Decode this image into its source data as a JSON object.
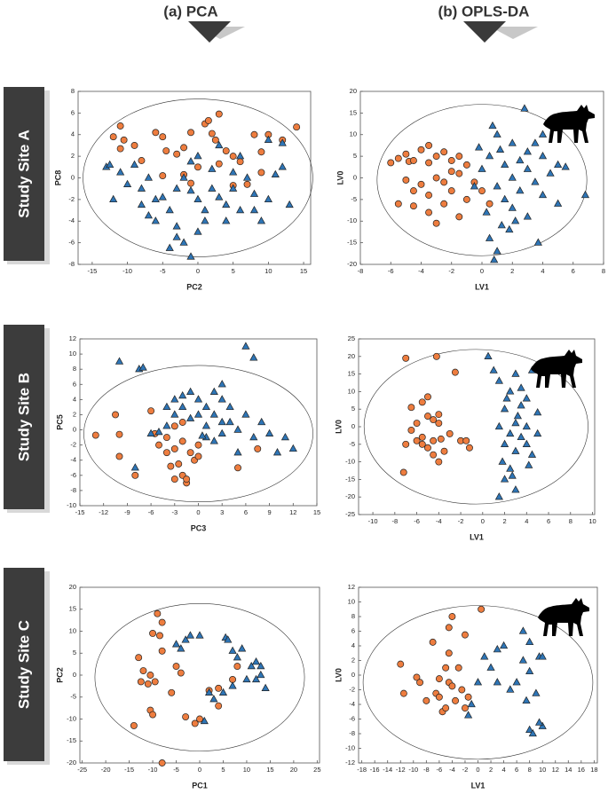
{
  "column_labels": [
    "(a)  PCA",
    "(b)  OPLS-DA"
  ],
  "row_labels": [
    "Study  Site  A",
    "Study  Site  B",
    "Study  Site  C"
  ],
  "chart_data": [
    {
      "type": "scatter",
      "xlabel": "PC2",
      "ylabel": "PC8",
      "xlim": [
        -17,
        16
      ],
      "ylim": [
        -8,
        8
      ],
      "xticks": [
        -15,
        -10,
        -5,
        0,
        5,
        10,
        15
      ],
      "yticks": [
        -8,
        -6,
        -4,
        -2,
        0,
        2,
        4,
        6,
        8
      ],
      "ellipse": {
        "center": [
          0,
          0
        ],
        "radii": [
          16.3,
          7.3
        ]
      },
      "series": [
        {
          "color": "#ee7d3f",
          "marker": "circle",
          "x": [
            -11,
            -12,
            -10.5,
            -9,
            -11,
            -6,
            -5,
            -4.5,
            -3,
            -2,
            -1,
            1,
            1.5,
            2,
            3,
            2.5,
            4,
            5,
            6,
            8,
            9,
            10,
            12,
            14,
            -2,
            -5,
            5,
            7,
            9,
            3,
            -8,
            0,
            -1
          ],
          "values": [
            4.8,
            3.8,
            3.5,
            3,
            2.7,
            4.2,
            3.8,
            2.5,
            2.2,
            2.8,
            4.2,
            5,
            5.3,
            4.1,
            5.9,
            3.5,
            2.5,
            2,
            1.5,
            4,
            2.4,
            4,
            3.5,
            4.7,
            0.3,
            0.2,
            -0.7,
            -0.6,
            0.5,
            1.3,
            1.6,
            1,
            -0.5
          ]
        },
        {
          "color": "#2e75b6",
          "marker": "triangle",
          "x": [
            -13,
            -12.5,
            -11,
            -10,
            -9,
            -8,
            -7,
            -6,
            -7,
            -6,
            -8,
            -5,
            -4,
            -3,
            -3,
            -2,
            -1,
            -1,
            0,
            0,
            1,
            1,
            2,
            2,
            3,
            3,
            4,
            5,
            5,
            6,
            6,
            7,
            8,
            8,
            9,
            10,
            11,
            12,
            13,
            12,
            10,
            -2,
            -1,
            0,
            -12,
            4,
            -4,
            -3
          ],
          "values": [
            1,
            1.2,
            0.5,
            -0.6,
            1.2,
            -1,
            0,
            -2,
            -3.5,
            -4,
            -2.5,
            -1.8,
            -3,
            -4.5,
            -1,
            0,
            -1.2,
            1.5,
            2,
            -2,
            -3,
            -4,
            -1,
            0.8,
            -1.8,
            3,
            -2.5,
            -1,
            0.5,
            -3,
            2,
            0,
            -1.5,
            -3,
            -4,
            -2,
            0.3,
            1,
            -2.5,
            3.2,
            3.5,
            -6,
            -7.3,
            -5,
            -2,
            -4,
            -6.5,
            -5.5
          ]
        }
      ]
    },
    {
      "type": "scatter",
      "xlabel": "LV1",
      "ylabel": "LV0",
      "xlim": [
        -8,
        8
      ],
      "ylim": [
        -20,
        20
      ],
      "xticks": [
        -8,
        -6,
        -4,
        -2,
        0,
        2,
        4,
        6,
        8
      ],
      "yticks": [
        -20,
        -15,
        -10,
        -5,
        0,
        5,
        10,
        15,
        20
      ],
      "ellipse": {
        "center": [
          0,
          -0.5
        ],
        "radii": [
          6.9,
          17.5
        ]
      },
      "series": [
        {
          "color": "#ee7d3f",
          "marker": "circle",
          "x": [
            -6,
            -5.5,
            -5,
            -4.8,
            -4.5,
            -4,
            -3.5,
            -3,
            -3.5,
            -2.5,
            -2,
            -1.5,
            -1,
            -2,
            -3,
            -2.5,
            -4,
            -4.5,
            -5.5,
            -4.5,
            -3.5,
            -3,
            -2.5,
            -2,
            -1.5,
            -1,
            -0.5,
            0,
            -3.5,
            -5,
            -1.5,
            0.5
          ],
          "values": [
            3.5,
            4.5,
            5.5,
            3.8,
            4,
            6.5,
            7.5,
            5,
            3.5,
            6,
            4,
            5,
            3,
            1.5,
            0,
            -1,
            -1.5,
            -3,
            -6,
            -6.5,
            -8,
            -10.5,
            -6,
            -3,
            -9,
            -5,
            -1,
            -3,
            -4,
            -0.5,
            1,
            -6
          ]
        },
        {
          "color": "#2e75b6",
          "marker": "triangle",
          "x": [
            0,
            0.5,
            0.7,
            1,
            1,
            1.5,
            1.5,
            2,
            2,
            2,
            2.5,
            2.5,
            3,
            3,
            3,
            3.5,
            3.5,
            4,
            4,
            4,
            2.8,
            4.5,
            5,
            5,
            0.5,
            1,
            0.8,
            1.3,
            1.8,
            3.7,
            6.8,
            -0.5,
            -0.2,
            1.2,
            5.5,
            2.2,
            0.3
          ],
          "values": [
            2,
            5,
            12,
            10,
            -2,
            3,
            -5,
            8,
            0,
            -7,
            4,
            -3,
            6,
            2,
            -9,
            8,
            -1,
            5,
            10,
            -4,
            16,
            1,
            3,
            -6,
            -14,
            -17,
            -19,
            -11,
            -12,
            -15,
            -4,
            -2,
            7,
            6.5,
            2.5,
            -10,
            -8
          ]
        }
      ]
    },
    {
      "type": "scatter",
      "xlabel": "PC3",
      "ylabel": "PC5",
      "xlim": [
        -15,
        15
      ],
      "ylim": [
        -10,
        12
      ],
      "xticks": [
        -15,
        -12,
        -9,
        -6,
        -3,
        0,
        3,
        6,
        9,
        12,
        15
      ],
      "yticks": [
        -10,
        -8,
        -6,
        -4,
        -2,
        0,
        2,
        4,
        6,
        8,
        10,
        12
      ],
      "ellipse": {
        "center": [
          0,
          -0.5
        ],
        "radii": [
          14.5,
          9
        ]
      },
      "series": [
        {
          "color": "#ee7d3f",
          "marker": "circle",
          "x": [
            -13,
            -10.5,
            -10,
            -10,
            -8,
            -6,
            -5.5,
            -5,
            -4,
            -4,
            -3,
            -3,
            -2.5,
            -2,
            -2,
            -1.5,
            -1,
            -0.5,
            0,
            -3,
            -1.5,
            0,
            -3.5,
            5,
            7.5,
            -2
          ],
          "values": [
            -0.7,
            2,
            -0.6,
            -3.5,
            -6,
            2.5,
            -0.5,
            -2,
            -3,
            -1,
            0.5,
            -2.5,
            -4.5,
            -1.5,
            -6,
            -7,
            -3,
            -4,
            -2,
            -6.5,
            -6.5,
            -3.5,
            -4.8,
            -5,
            -2.5,
            1
          ]
        },
        {
          "color": "#2e75b6",
          "marker": "triangle",
          "x": [
            -10,
            -7.5,
            -7,
            -8,
            -6,
            -5,
            -4,
            -3,
            -3,
            -2,
            -2,
            -1,
            -1,
            0,
            0,
            1,
            1,
            1,
            2,
            2,
            2,
            3,
            3,
            3,
            3,
            4,
            4,
            5,
            5,
            6,
            6,
            7,
            7,
            8,
            9,
            10,
            11,
            12,
            -4,
            0.5
          ],
          "values": [
            9,
            8,
            8.2,
            -5,
            -0.5,
            -0.3,
            0.5,
            4,
            2,
            3,
            4.5,
            5,
            1.5,
            2,
            4,
            0.5,
            3,
            -1,
            5,
            2,
            -1.5,
            4,
            1,
            6,
            -0.5,
            3,
            1,
            0,
            -3,
            11,
            2,
            9.5,
            -1,
            1,
            -0.5,
            -3,
            -1,
            -2.5,
            3,
            -0.8
          ]
        }
      ]
    },
    {
      "type": "scatter",
      "xlabel": "LV1",
      "ylabel": "LV0",
      "xlim": [
        -11.3,
        10.2
      ],
      "ylim": [
        -25,
        25
      ],
      "xticks": [
        -10,
        -8,
        -6,
        -4,
        -2,
        0,
        2,
        4,
        6,
        8,
        10
      ],
      "yticks": [
        -25,
        -20,
        -15,
        -10,
        -5,
        0,
        5,
        10,
        15,
        20,
        25
      ],
      "ellipse": {
        "center": [
          -0.6,
          0
        ],
        "radii": [
          10.2,
          22
        ]
      },
      "series": [
        {
          "color": "#ee7d3f",
          "marker": "circle",
          "x": [
            -7,
            -4.2,
            -7.2,
            -7,
            -6.5,
            -6.5,
            -6,
            -6,
            -5.5,
            -5.5,
            -5,
            -5,
            -5,
            -4.5,
            -4.5,
            -4.5,
            -4,
            -4,
            -3.8,
            -3.5,
            -3,
            -2.5,
            -2,
            -1.5,
            -1.2,
            -4,
            -5.5
          ],
          "values": [
            19.5,
            20,
            -13,
            -5,
            5.5,
            -1,
            -4,
            1,
            7,
            -3,
            3,
            -6,
            8.5,
            -8,
            2,
            -4,
            1,
            -10,
            -3.5,
            -7,
            -2,
            15.5,
            -4,
            -4,
            -6,
            3.5,
            -5
          ]
        },
        {
          "color": "#2e75b6",
          "marker": "triangle",
          "x": [
            0.5,
            1,
            1.5,
            1.5,
            1.8,
            2,
            2,
            2,
            2.2,
            2.5,
            2.5,
            2.5,
            3,
            3,
            3,
            3,
            3.5,
            3.5,
            3.5,
            4,
            4,
            4,
            4.5,
            4.5,
            5,
            5,
            2.7,
            1.5,
            3.2,
            4.2
          ],
          "values": [
            20,
            16,
            13,
            0,
            -10,
            -15,
            5,
            -5,
            8,
            -2,
            10,
            -12,
            15,
            1,
            -7,
            -18,
            6,
            -3,
            11,
            0,
            -5,
            8,
            16,
            -8,
            -2,
            4,
            -14,
            -20,
            3,
            -11
          ]
        }
      ]
    },
    {
      "type": "scatter",
      "xlabel": "PC1",
      "ylabel": "PC2",
      "xlim": [
        -25.5,
        25.5
      ],
      "ylim": [
        -20,
        20
      ],
      "xticks": [
        -25,
        -20,
        -15,
        -10,
        -5,
        0,
        5,
        10,
        15,
        20,
        25
      ],
      "yticks": [
        -20,
        -15,
        -10,
        -5,
        0,
        5,
        10,
        15,
        20
      ],
      "ellipse": {
        "center": [
          0,
          -0.5
        ],
        "radii": [
          22.3,
          16.8
        ]
      },
      "series": [
        {
          "color": "#ee7d3f",
          "marker": "circle",
          "x": [
            -14,
            -13,
            -12.5,
            -12,
            -11,
            -10.5,
            -10,
            -10,
            -10.5,
            -9.5,
            -9,
            -8.5,
            -8,
            -8,
            -8,
            -6,
            -5,
            -4,
            -3,
            -1,
            0,
            2,
            4,
            4,
            7,
            8
          ],
          "values": [
            -11.5,
            4,
            -1.5,
            1,
            -2,
            -8,
            -9,
            9.5,
            0,
            -1.5,
            14,
            9,
            12,
            -20,
            5.5,
            -4,
            2,
            0.5,
            -9.5,
            -11,
            -10,
            -3.5,
            -3,
            -7,
            -1,
            2
          ]
        },
        {
          "color": "#2e75b6",
          "marker": "triangle",
          "x": [
            -5,
            -4,
            -3,
            -2,
            0,
            1,
            2,
            3,
            5,
            5.5,
            6,
            7,
            7,
            8,
            9,
            11,
            12,
            12,
            13,
            14,
            13,
            10
          ],
          "values": [
            7,
            6,
            8,
            9,
            9,
            -10.5,
            -4,
            -5.5,
            -4,
            8.5,
            8,
            5.5,
            -2.5,
            4,
            6,
            2,
            -1,
            3,
            0,
            -3,
            2,
            -1
          ]
        }
      ]
    },
    {
      "type": "scatter",
      "xlabel": "LV1",
      "ylabel": "LV0",
      "xlim": [
        -18.5,
        18.5
      ],
      "ylim": [
        -12,
        12
      ],
      "xticks": [
        -18,
        -16,
        -14,
        -12,
        -10,
        -8,
        -6,
        -4,
        -2,
        0,
        2,
        4,
        6,
        8,
        10,
        12,
        14,
        16,
        18
      ],
      "yticks": [
        -12,
        -10,
        -8,
        -6,
        -4,
        -2,
        0,
        2,
        4,
        6,
        8,
        10,
        12
      ],
      "ellipse": {
        "center": [
          0,
          -1
        ],
        "radii": [
          17.8,
          10.5
        ]
      },
      "series": [
        {
          "color": "#ee7d3f",
          "marker": "circle",
          "x": [
            -12,
            -11.5,
            -9.5,
            -9,
            -8,
            -7,
            -6.5,
            -6,
            -6,
            -5.5,
            -5,
            -5,
            -4.5,
            -4.5,
            -4.5,
            -4,
            -4,
            -3.5,
            -3,
            -2.5,
            -2,
            -2,
            -1.5,
            0.5
          ],
          "values": [
            1.5,
            -2.5,
            -0.3,
            -1,
            -3.5,
            4.5,
            -2.5,
            -3,
            -0.5,
            -5,
            -4.5,
            1,
            6.5,
            3,
            -1,
            8,
            -1.5,
            -3.5,
            1,
            -2,
            5.5,
            -4.5,
            -3,
            9
          ]
        },
        {
          "color": "#2e75b6",
          "marker": "triangle",
          "x": [
            -1.5,
            -1,
            0,
            1,
            2,
            3,
            3,
            4,
            5,
            6,
            7,
            7,
            8,
            8,
            8,
            8.5,
            9,
            9.5,
            10,
            10,
            7.5,
            9.5
          ],
          "values": [
            -5.5,
            -4,
            -1,
            2.5,
            1,
            3.5,
            -1,
            4,
            -2,
            -1,
            6,
            2,
            4.5,
            0.5,
            -7.5,
            -8,
            -2.5,
            2.5,
            -7,
            2.5,
            -3.5,
            -6.5
          ]
        }
      ]
    }
  ]
}
